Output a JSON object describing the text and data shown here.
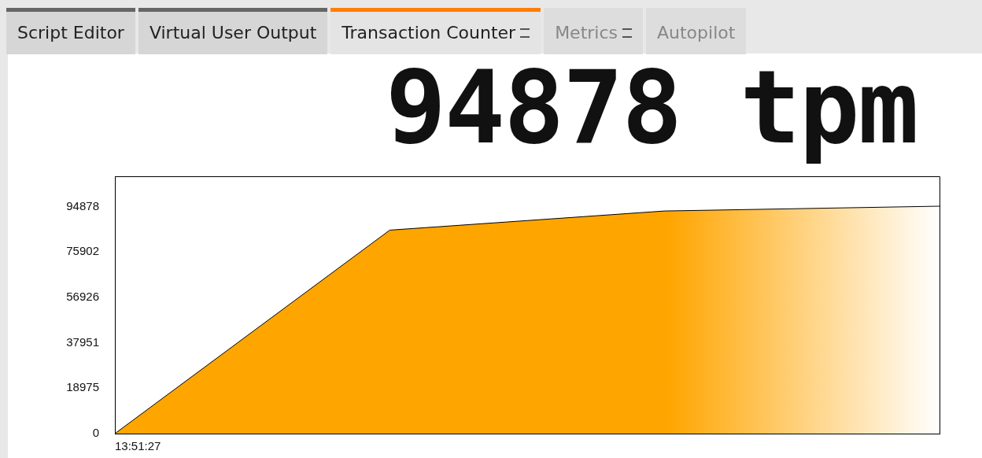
{
  "chart_data": {
    "type": "area",
    "annotations": [
      "94878 tpm",
      "Script Editor",
      "Virtual User Output",
      "Transaction Counter",
      "Metrics",
      "Autopilot"
    ],
    "categories": [
      "13:51:27",
      null,
      null,
      null
    ],
    "series": [
      {
        "color": "#ffa500",
        "values": [
          0,
          85000,
          93000,
          95000
        ]
      }
    ],
    "ylim": [
      0,
      107500
    ],
    "yticks": [
      0,
      18975,
      37951,
      56926,
      75902,
      94878
    ],
    "grid": false,
    "legend": false,
    "marker": "none"
  }
}
